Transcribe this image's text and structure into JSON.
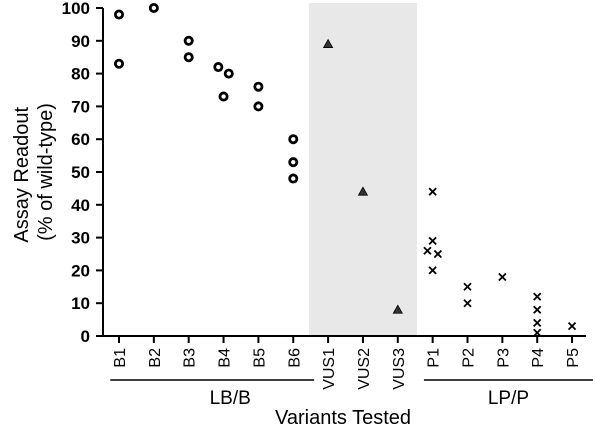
{
  "chart_data": {
    "type": "scatter",
    "title": "",
    "xlabel": "Variants Tested",
    "ylabel_lines": [
      "Assay Readout",
      "(% of wild-type)"
    ],
    "ylim": [
      0,
      100
    ],
    "yticks": [
      0,
      10,
      20,
      30,
      40,
      50,
      60,
      70,
      80,
      90,
      100
    ],
    "categories": [
      "B1",
      "B2",
      "B3",
      "B4",
      "B5",
      "B6",
      "VUS1",
      "VUS2",
      "VUS3",
      "P1",
      "P2",
      "P3",
      "P4",
      "P5"
    ],
    "highlight_band": {
      "from_category": "VUS1",
      "to_category": "VUS3",
      "color": "#e8e8e8"
    },
    "groups": [
      {
        "label": "LB/B",
        "first_category": "B1",
        "last_category": "B6"
      },
      {
        "label": "LP/P",
        "first_category": "P1",
        "last_category": "P5"
      }
    ],
    "series": [
      {
        "marker": "open-circle",
        "points": [
          {
            "category": "B1",
            "y": 98,
            "offset": 0
          },
          {
            "category": "B1",
            "y": 83,
            "offset": 0
          },
          {
            "category": "B2",
            "y": 100,
            "offset": 0
          },
          {
            "category": "B3",
            "y": 90,
            "offset": 0
          },
          {
            "category": "B3",
            "y": 85,
            "offset": 0
          },
          {
            "category": "B4",
            "y": 82,
            "offset": -0.3
          },
          {
            "category": "B4",
            "y": 80,
            "offset": 0.3
          },
          {
            "category": "B4",
            "y": 73,
            "offset": 0
          },
          {
            "category": "B5",
            "y": 76,
            "offset": 0
          },
          {
            "category": "B5",
            "y": 70,
            "offset": 0
          },
          {
            "category": "B6",
            "y": 60,
            "offset": 0
          },
          {
            "category": "B6",
            "y": 53,
            "offset": 0
          },
          {
            "category": "B6",
            "y": 48,
            "offset": 0
          }
        ]
      },
      {
        "marker": "triangle",
        "points": [
          {
            "category": "VUS1",
            "y": 89,
            "offset": 0
          },
          {
            "category": "VUS2",
            "y": 44,
            "offset": 0
          },
          {
            "category": "VUS3",
            "y": 8,
            "offset": 0
          }
        ]
      },
      {
        "marker": "cross",
        "points": [
          {
            "category": "P1",
            "y": 44,
            "offset": 0
          },
          {
            "category": "P1",
            "y": 29,
            "offset": 0
          },
          {
            "category": "P1",
            "y": 26,
            "offset": -0.3
          },
          {
            "category": "P1",
            "y": 25,
            "offset": 0.3
          },
          {
            "category": "P1",
            "y": 20,
            "offset": 0
          },
          {
            "category": "P2",
            "y": 15,
            "offset": 0
          },
          {
            "category": "P2",
            "y": 10,
            "offset": 0
          },
          {
            "category": "P3",
            "y": 18,
            "offset": 0
          },
          {
            "category": "P4",
            "y": 12,
            "offset": 0
          },
          {
            "category": "P4",
            "y": 8,
            "offset": 0
          },
          {
            "category": "P4",
            "y": 4,
            "offset": 0
          },
          {
            "category": "P4",
            "y": 1,
            "offset": 0
          },
          {
            "category": "P5",
            "y": 3,
            "offset": 0
          }
        ]
      }
    ]
  }
}
